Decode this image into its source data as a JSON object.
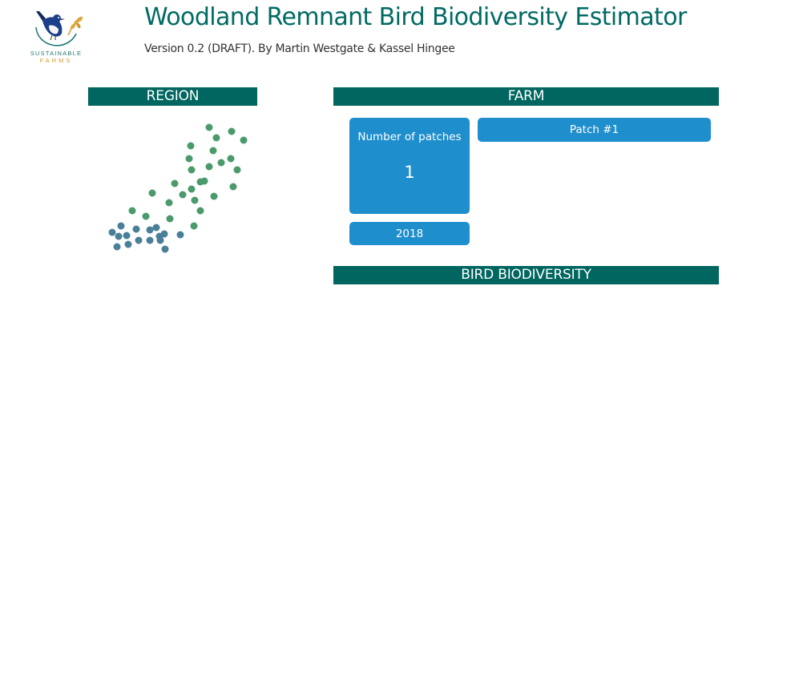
{
  "header": {
    "title": "Woodland Remnant Bird Biodiversity Estimator",
    "subtitle": "Version 0.2 (DRAFT). By Martin Westgate & Kassel Hingee"
  },
  "logo": {
    "name": "sustainable-farms-logo",
    "line1": "SUSTAINABLE",
    "line2": "FARMS"
  },
  "region": {
    "header": "REGION",
    "colors": {
      "green": "#4a9a6b",
      "blue": "#4a7f98"
    }
  },
  "farm": {
    "header": "FARM",
    "patches_label": "Number of patches",
    "patches_value": "1",
    "year": "2018",
    "patch_button": "Patch #1"
  },
  "bird": {
    "header": "BIRD BIODIVERSITY"
  },
  "colors": {
    "title": "#006a63",
    "section_header_bg": "#00665f",
    "button_bg": "#1f8ecd"
  }
}
